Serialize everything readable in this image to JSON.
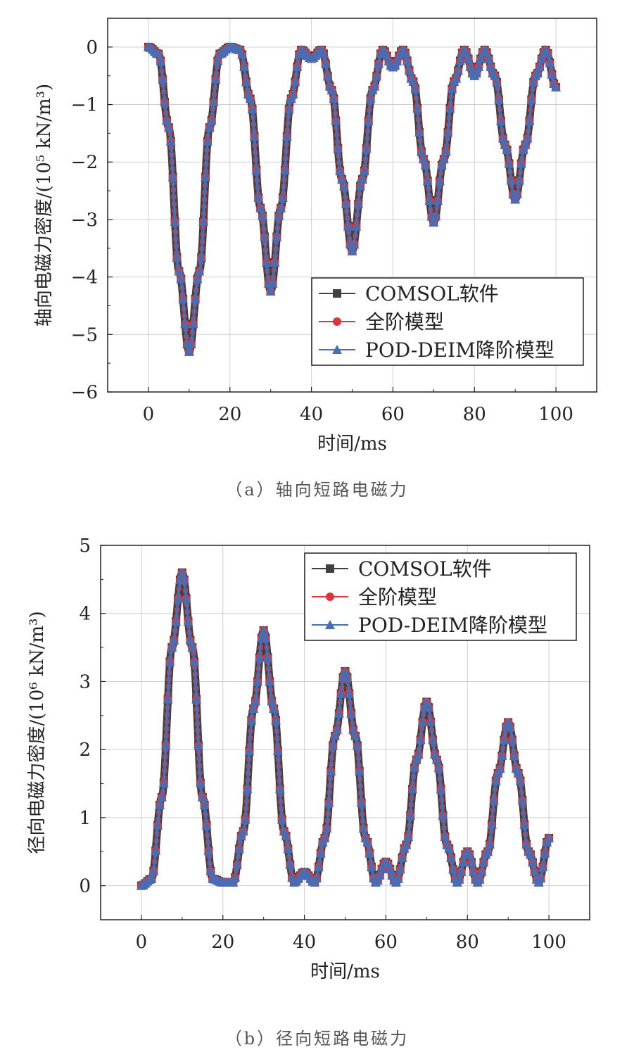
{
  "chart_data": [
    {
      "type": "line",
      "panel": "a",
      "caption": "（a）轴向短路电磁力",
      "xlabel": "时间/ms",
      "ylabel": "轴向电磁力密度/(10⁵ kN/m³)",
      "xlim": [
        -10,
        110
      ],
      "ylim": [
        -6,
        0.5
      ],
      "xticks": [
        "0",
        "20",
        "40",
        "60",
        "80",
        "100"
      ],
      "yticks": [
        "0",
        "−1",
        "−2",
        "−3",
        "−4",
        "−5",
        "−6"
      ],
      "grid": true,
      "legend_position": "bottom-right",
      "x": [
        0,
        2.5,
        5,
        7.5,
        10,
        12.5,
        15,
        17.5,
        20,
        22.5,
        25,
        27.5,
        30,
        32.5,
        35,
        37.5,
        40,
        42.5,
        45,
        47.5,
        50,
        52.5,
        55,
        57.5,
        60,
        62.5,
        65,
        67.5,
        70,
        72.5,
        75,
        77.5,
        80,
        82.5,
        85,
        87.5,
        90,
        92.5,
        95,
        97.5,
        100
      ],
      "series": [
        {
          "name": "COMSOL软件",
          "color": "#404040",
          "marker": "square",
          "values": [
            0,
            -0.12,
            -1.4,
            -3.9,
            -5.3,
            -3.9,
            -1.4,
            -0.12,
            0,
            -0.05,
            -0.9,
            -2.8,
            -4.25,
            -2.8,
            -0.9,
            -0.05,
            -0.2,
            -0.05,
            -0.75,
            -2.3,
            -3.55,
            -2.3,
            -0.75,
            -0.05,
            -0.35,
            -0.05,
            -0.6,
            -1.95,
            -3.05,
            -1.95,
            -0.6,
            -0.05,
            -0.5,
            -0.05,
            -0.5,
            -1.7,
            -2.65,
            -1.7,
            -0.5,
            -0.05,
            -0.7
          ]
        },
        {
          "name": "全阶模型",
          "color": "#d9383a",
          "marker": "circle",
          "values": [
            0,
            -0.12,
            -1.4,
            -3.9,
            -5.3,
            -3.9,
            -1.4,
            -0.12,
            0,
            -0.05,
            -0.9,
            -2.8,
            -4.25,
            -2.8,
            -0.9,
            -0.05,
            -0.2,
            -0.05,
            -0.75,
            -2.3,
            -3.55,
            -2.3,
            -0.75,
            -0.05,
            -0.35,
            -0.05,
            -0.6,
            -1.95,
            -3.05,
            -1.95,
            -0.6,
            -0.05,
            -0.5,
            -0.05,
            -0.5,
            -1.7,
            -2.65,
            -1.7,
            -0.5,
            -0.05,
            -0.7
          ]
        },
        {
          "name": "POD-DEIM降阶模型",
          "color": "#4a6cb3",
          "marker": "triangle",
          "values": [
            0,
            -0.12,
            -1.4,
            -3.9,
            -5.3,
            -3.9,
            -1.4,
            -0.12,
            0,
            -0.05,
            -0.9,
            -2.8,
            -4.25,
            -2.8,
            -0.9,
            -0.05,
            -0.2,
            -0.05,
            -0.75,
            -2.3,
            -3.55,
            -2.3,
            -0.75,
            -0.05,
            -0.35,
            -0.05,
            -0.6,
            -1.95,
            -3.05,
            -1.95,
            -0.6,
            -0.05,
            -0.5,
            -0.05,
            -0.5,
            -1.7,
            -2.65,
            -1.7,
            -0.5,
            -0.05,
            -0.7
          ]
        }
      ]
    },
    {
      "type": "line",
      "panel": "b",
      "caption": "（b）径向短路电磁力",
      "xlabel": "时间/ms",
      "ylabel": "径向电磁力密度/(10⁶ kN/m³)",
      "xlim": [
        -10,
        110
      ],
      "ylim": [
        -0.5,
        5
      ],
      "xticks": [
        "0",
        "20",
        "40",
        "60",
        "80",
        "100"
      ],
      "yticks": [
        "0",
        "1",
        "2",
        "3",
        "4",
        "5"
      ],
      "grid": true,
      "legend_position": "top-right",
      "x": [
        0,
        2.5,
        5,
        7.5,
        10,
        12.5,
        15,
        17.5,
        20,
        22.5,
        25,
        27.5,
        30,
        32.5,
        35,
        37.5,
        40,
        42.5,
        45,
        47.5,
        50,
        52.5,
        55,
        57.5,
        60,
        62.5,
        65,
        67.5,
        70,
        72.5,
        75,
        77.5,
        80,
        82.5,
        85,
        87.5,
        90,
        92.5,
        95,
        97.5,
        100
      ],
      "series": [
        {
          "name": "COMSOL软件",
          "color": "#404040",
          "marker": "square",
          "values": [
            0,
            0.1,
            1.3,
            3.5,
            4.6,
            3.5,
            1.3,
            0.1,
            0.05,
            0.05,
            0.8,
            2.6,
            3.75,
            2.6,
            0.8,
            0.05,
            0.2,
            0.05,
            0.7,
            2.2,
            3.15,
            2.2,
            0.7,
            0.05,
            0.35,
            0.05,
            0.6,
            1.85,
            2.7,
            1.85,
            0.6,
            0.05,
            0.5,
            0.05,
            0.5,
            1.65,
            2.4,
            1.65,
            0.5,
            0.05,
            0.7
          ]
        },
        {
          "name": "全阶模型",
          "color": "#d9383a",
          "marker": "circle",
          "values": [
            0,
            0.1,
            1.3,
            3.5,
            4.6,
            3.5,
            1.3,
            0.1,
            0.05,
            0.05,
            0.8,
            2.6,
            3.75,
            2.6,
            0.8,
            0.05,
            0.2,
            0.05,
            0.7,
            2.2,
            3.15,
            2.2,
            0.7,
            0.05,
            0.35,
            0.05,
            0.6,
            1.85,
            2.7,
            1.85,
            0.6,
            0.05,
            0.5,
            0.05,
            0.5,
            1.65,
            2.4,
            1.65,
            0.5,
            0.05,
            0.7
          ]
        },
        {
          "name": "POD-DEIM降阶模型",
          "color": "#4a6cb3",
          "marker": "triangle",
          "values": [
            0,
            0.1,
            1.3,
            3.5,
            4.6,
            3.5,
            1.3,
            0.1,
            0.05,
            0.05,
            0.8,
            2.6,
            3.75,
            2.6,
            0.8,
            0.05,
            0.2,
            0.05,
            0.7,
            2.2,
            3.15,
            2.2,
            0.7,
            0.05,
            0.35,
            0.05,
            0.6,
            1.85,
            2.7,
            1.85,
            0.6,
            0.05,
            0.5,
            0.05,
            0.5,
            1.65,
            2.4,
            1.65,
            0.5,
            0.05,
            0.7
          ]
        }
      ]
    }
  ]
}
